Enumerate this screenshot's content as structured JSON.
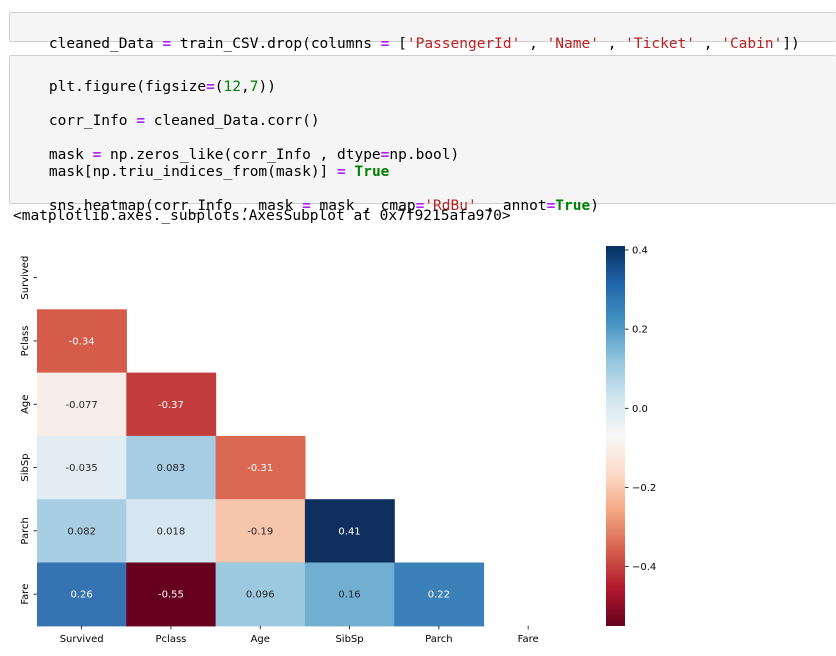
{
  "cell1": {
    "code_parts": [
      "cleaned_Data ",
      "=",
      " train_CSV.drop(columns ",
      "=",
      " [",
      "'PassengerId'",
      " , ",
      "'Name'",
      " , ",
      "'Ticket'",
      " , ",
      "'Cabin'",
      "])"
    ]
  },
  "cell2": {
    "line1": [
      "plt.figure(figsize",
      "=",
      "(",
      "12",
      ",",
      "7",
      "))"
    ],
    "line2": [
      "corr_Info ",
      "=",
      " cleaned_Data.corr()"
    ],
    "line3": [
      "mask ",
      "=",
      " np.zeros_like(corr_Info , dtype",
      "=",
      "np.bool)"
    ],
    "line4": [
      "mask[np.triu_indices_from(mask)] ",
      "=",
      " ",
      "True"
    ],
    "line5": [
      "sns.heatmap(corr_Info , mask ",
      "=",
      " mask , cmap",
      "=",
      "'RdBu'",
      " , annot",
      "=",
      "True",
      ")"
    ]
  },
  "output": {
    "text": "<matplotlib.axes._subplots.AxesSubplot at 0x7f9215afa970>"
  },
  "chart_data": {
    "type": "heatmap",
    "labels": [
      "Survived",
      "Pclass",
      "Age",
      "SibSp",
      "Parch",
      "Fare"
    ],
    "rows": [
      "Survived",
      "Pclass",
      "Age",
      "SibSp",
      "Parch",
      "Fare"
    ],
    "cols": [
      "Survived",
      "Pclass",
      "Age",
      "SibSp",
      "Parch",
      "Fare"
    ],
    "values": [
      [
        null,
        null,
        null,
        null,
        null,
        null
      ],
      [
        -0.34,
        null,
        null,
        null,
        null,
        null
      ],
      [
        -0.077,
        -0.37,
        null,
        null,
        null,
        null
      ],
      [
        -0.035,
        0.083,
        -0.31,
        null,
        null,
        null
      ],
      [
        0.082,
        0.018,
        -0.19,
        0.41,
        null,
        null
      ],
      [
        0.26,
        -0.55,
        0.096,
        0.16,
        0.22,
        null
      ]
    ],
    "annotations": [
      [
        null,
        null,
        null,
        null,
        null,
        null
      ],
      [
        "-0.34",
        null,
        null,
        null,
        null,
        null
      ],
      [
        "-0.077",
        "-0.37",
        null,
        null,
        null,
        null
      ],
      [
        "-0.035",
        "0.083",
        "-0.31",
        null,
        null,
        null
      ],
      [
        "0.082",
        "0.018",
        "-0.19",
        "0.41",
        null,
        null
      ],
      [
        "0.26",
        "-0.55",
        "0.096",
        "0.16",
        "0.22",
        null
      ]
    ],
    "colormap": "RdBu",
    "vmin": -0.55,
    "vmax": 0.41,
    "colorbar_ticks": [
      0.4,
      0.2,
      0.0,
      -0.2,
      -0.4
    ],
    "colorbar_tick_labels": [
      "0.4",
      "0.2",
      "0.0",
      "−0.2",
      "−0.4"
    ],
    "cell_colors": [
      [
        null,
        null,
        null,
        null,
        null,
        null
      ],
      [
        "#d55c4a",
        null,
        null,
        null,
        null,
        null
      ],
      [
        "#f7eeea",
        "#c43d3d",
        null,
        null,
        null,
        null
      ],
      [
        "#e2edf3",
        "#a6cde3",
        "#da6954",
        null,
        null,
        null
      ],
      [
        "#a8cee4",
        "#d6e7f1",
        "#f6c5ab",
        "#0f2f5f",
        null,
        null
      ],
      [
        "#3573b2",
        "#67001f",
        "#9dc9e0",
        "#71afd2",
        "#3b80b9",
        null
      ]
    ],
    "text_colors": [
      [
        null,
        null,
        null,
        null,
        null,
        null
      ],
      [
        "#ffffff",
        null,
        null,
        null,
        null,
        null
      ],
      [
        "#262626",
        "#ffffff",
        null,
        null,
        null,
        null
      ],
      [
        "#262626",
        "#262626",
        "#ffffff",
        null,
        null,
        null
      ],
      [
        "#262626",
        "#262626",
        "#262626",
        "#ffffff",
        null,
        null
      ],
      [
        "#ffffff",
        "#ffffff",
        "#262626",
        "#262626",
        "#ffffff",
        null
      ]
    ]
  }
}
